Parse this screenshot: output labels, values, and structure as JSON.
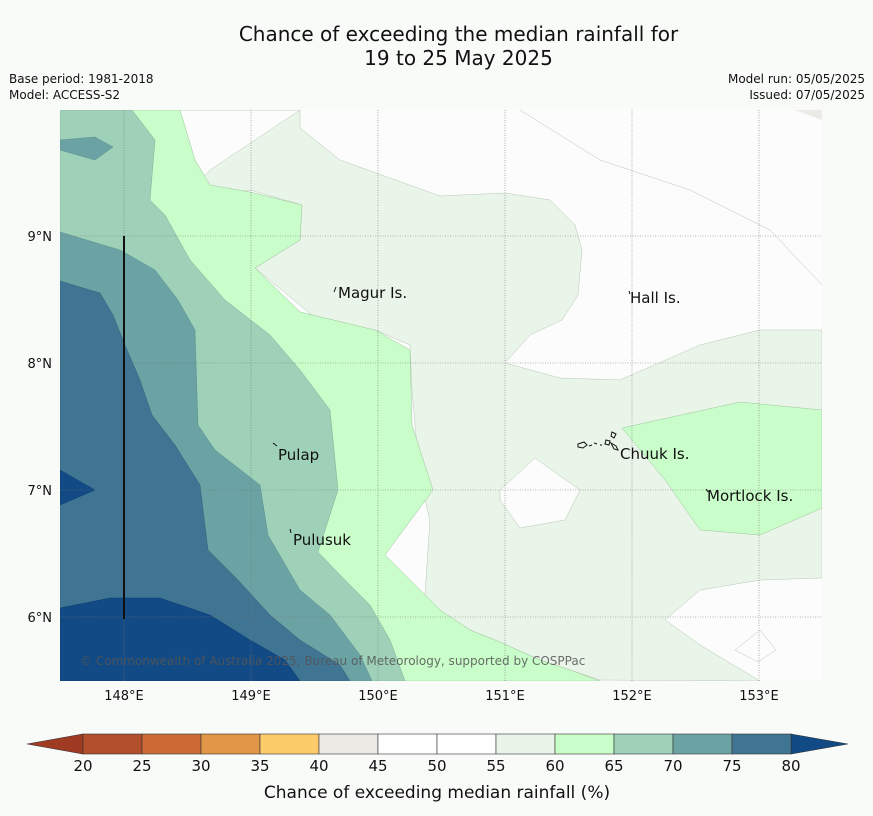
{
  "title_line1": "Chance of exceeding the median rainfall for",
  "title_line2": "19 to 25 May 2025",
  "base_period": "Base period: 1981-2018",
  "model": "Model: ACCESS-S2",
  "model_run": "Model run: 05/05/2025",
  "issued": "Issued: 07/05/2025",
  "copyright": "© Commonwealth of Australia 2025, Bureau of Meteorology, supported by COSPPac",
  "axes": {
    "lat_labels": [
      "9°N",
      "8°N",
      "7°N",
      "6°N"
    ],
    "lon_labels": [
      "148°E",
      "149°E",
      "150°E",
      "151°E",
      "152°E",
      "153°E"
    ]
  },
  "places": [
    {
      "name": "Magur Is."
    },
    {
      "name": "Hall Is."
    },
    {
      "name": "Pulap"
    },
    {
      "name": "Chuuk Is."
    },
    {
      "name": "Mortlock Is."
    },
    {
      "name": "Pulusuk"
    }
  ],
  "colorbar": {
    "ticks": [
      "20",
      "25",
      "30",
      "35",
      "40",
      "45",
      "50",
      "55",
      "60",
      "65",
      "70",
      "75",
      "80"
    ],
    "colors": [
      "#b14f2a",
      "#cd6a35",
      "#e19747",
      "#fdcc6a",
      "#ebeae5",
      "#fefefe",
      "#fefefe",
      "#eaf5e9",
      "#c9fdc9",
      "#9ed1b8",
      "#6ba3a4",
      "#3f7593"
    ],
    "under_color": "#9f3b22",
    "over_color": "#114a85",
    "label": "Chance of exceeding median rainfall (%)"
  }
}
